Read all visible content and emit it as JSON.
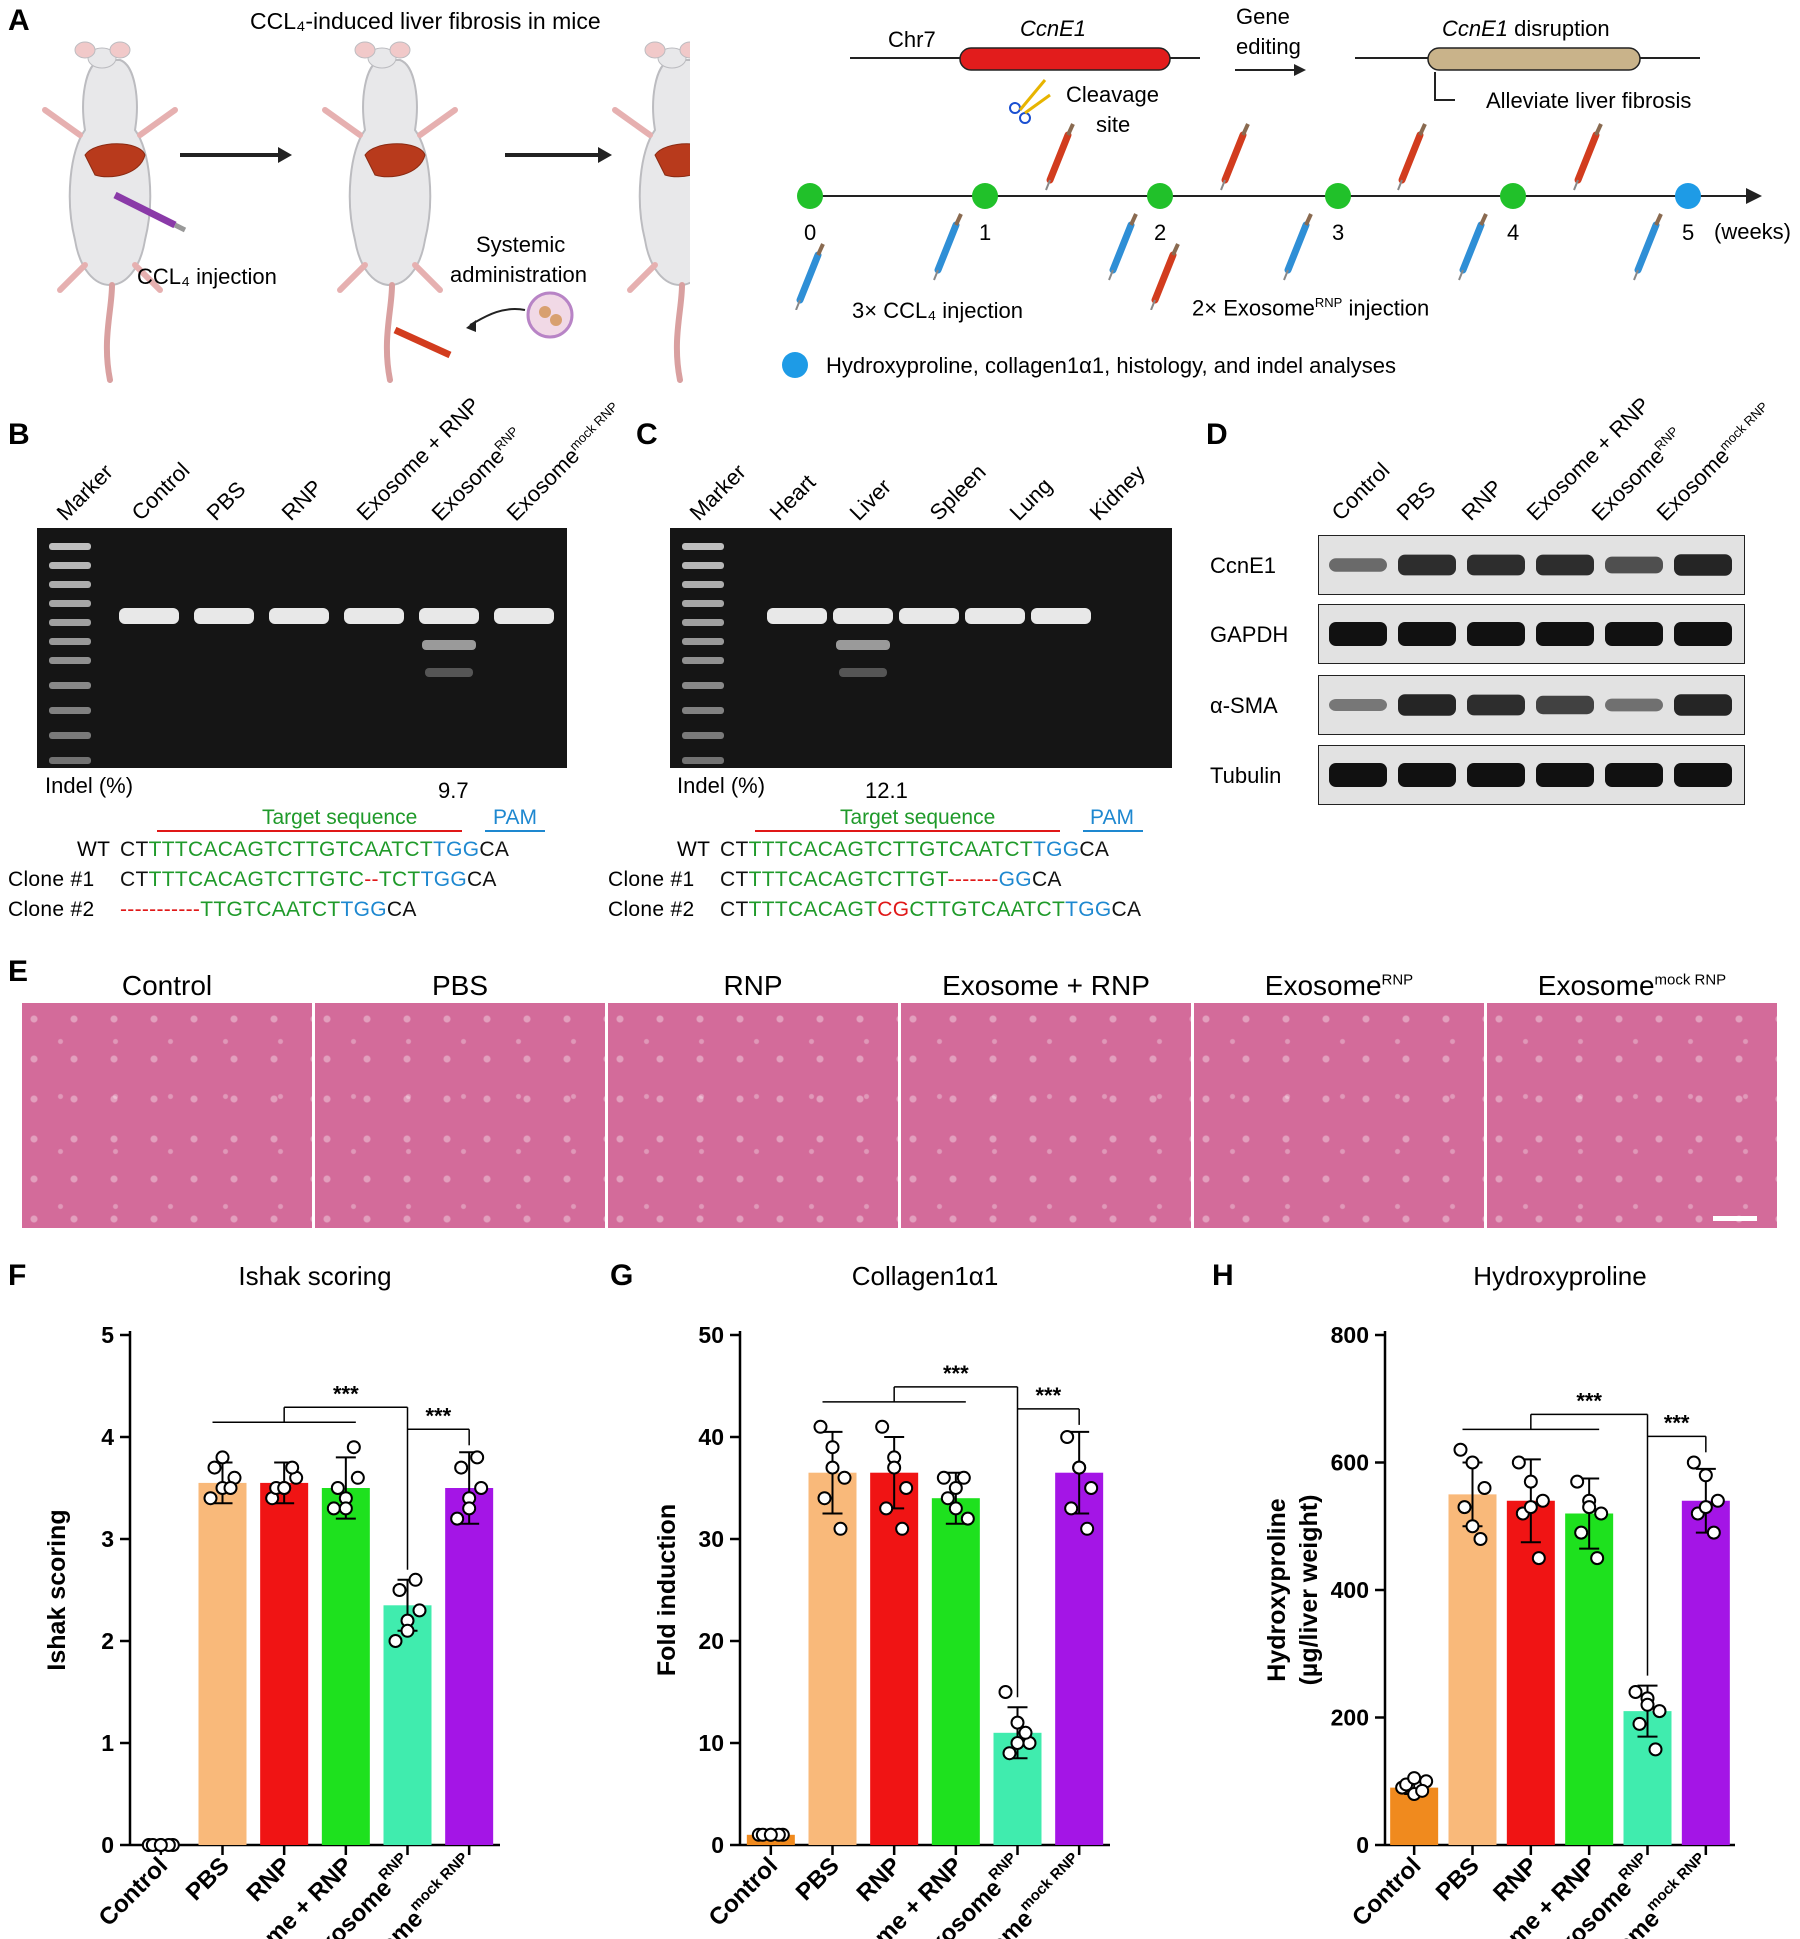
{
  "panelA": {
    "letter": "A",
    "title": "CCL₄-induced liver fibrosis in mice",
    "ccl4_injection": "CCL₄ injection",
    "systemic_1": "Systemic",
    "systemic_2": "administration",
    "chr": "Chr7",
    "gene": "CcnE1",
    "cleavage_1": "Cleavage",
    "cleavage_2": "site",
    "gene_editing_1": "Gene",
    "gene_editing_2": "editing",
    "disruption_gene": "CcnE1",
    "disruption_text": " disruption",
    "alleviate": "Alleviate liver fibrosis",
    "timeline_ticks": [
      "0",
      "1",
      "2",
      "3",
      "4",
      "5"
    ],
    "weeks": "(weeks)",
    "legend_ccl4": "3× CCL₄ injection",
    "legend_exo_pre": "2× Exosome",
    "legend_exo_sup": "RNP",
    "legend_exo_post": " injection",
    "legend_analysis": "Hydroxyproline, collagen1α1, histology, and indel analyses"
  },
  "panelB": {
    "letter": "B",
    "lanes": [
      "Marker",
      "Control",
      "PBS",
      "RNP",
      "Exosome + RNP",
      "ExosomeRNP",
      "Exosomemock RNP"
    ],
    "indel_label": "Indel (%)",
    "indel_value": "9.7",
    "target": "Target sequence",
    "pam": "PAM",
    "rows": [
      {
        "label": "WT",
        "segments": [
          [
            "CT",
            "k"
          ],
          [
            "TTTCACAGTCTTGTCAATCT",
            "g"
          ],
          [
            "TGG",
            "b"
          ],
          [
            "CA",
            "k"
          ]
        ]
      },
      {
        "label": "Clone #1",
        "segments": [
          [
            "CT",
            "k"
          ],
          [
            "TTTCACAGTCTTGTC",
            "g"
          ],
          [
            "--",
            "r"
          ],
          [
            "TCT",
            "g"
          ],
          [
            "TGG",
            "b"
          ],
          [
            "CA",
            "k"
          ]
        ]
      },
      {
        "label": "Clone #2",
        "segments": [
          [
            "-----------",
            "r"
          ],
          [
            "TTGTCAATCT",
            "g"
          ],
          [
            "TGG",
            "b"
          ],
          [
            "CA",
            "k"
          ]
        ]
      }
    ]
  },
  "panelC": {
    "letter": "C",
    "lanes": [
      "Marker",
      "Heart",
      "Liver",
      "Spleen",
      "Lung",
      "Kidney"
    ],
    "indel_label": "Indel (%)",
    "indel_value": "12.1",
    "target": "Target sequence",
    "pam": "PAM",
    "rows": [
      {
        "label": "WT",
        "segments": [
          [
            "CT",
            "k"
          ],
          [
            "TTTCACAGTCTTGTCAATCT",
            "g"
          ],
          [
            "TGG",
            "b"
          ],
          [
            "CA",
            "k"
          ]
        ]
      },
      {
        "label": "Clone #1",
        "segments": [
          [
            "CT",
            "k"
          ],
          [
            "TTTCACAGTCTTGT",
            "g"
          ],
          [
            "-------",
            "r"
          ],
          [
            "GG",
            "b"
          ],
          [
            "CA",
            "k"
          ]
        ]
      },
      {
        "label": "Clone #2",
        "segments": [
          [
            "CT",
            "k"
          ],
          [
            "TTTCACAGT",
            "g"
          ],
          [
            "CG",
            "r"
          ],
          [
            "CTTGTCAATCT",
            "g"
          ],
          [
            "TGG",
            "b"
          ],
          [
            "CA",
            "k"
          ]
        ]
      }
    ]
  },
  "panelD": {
    "letter": "D",
    "lanes": [
      "Control",
      "PBS",
      "RNP",
      "Exosome + RNP",
      "ExosomeRNP",
      "Exosomemock RNP"
    ],
    "blots": [
      {
        "name": "CcnE1",
        "intensity": [
          0.35,
          0.8,
          0.8,
          0.8,
          0.55,
          0.85
        ]
      },
      {
        "name": "GAPDH",
        "intensity": [
          1,
          1,
          1,
          1,
          1,
          1
        ]
      },
      {
        "name": "α-SMA",
        "intensity": [
          0.25,
          0.85,
          0.8,
          0.65,
          0.3,
          0.85
        ]
      },
      {
        "name": "Tubulin",
        "intensity": [
          1,
          1,
          1,
          1,
          1,
          1
        ]
      }
    ]
  },
  "panelE": {
    "letter": "E",
    "labels": [
      "Control",
      "PBS",
      "RNP",
      "Exosome + RNP",
      "Exosome",
      "Exosome"
    ],
    "sups": [
      "",
      "",
      "",
      "",
      "RNP",
      "mock RNP"
    ]
  },
  "categories": [
    "Control",
    "PBS",
    "RNP",
    "Exosome + RNP",
    "Exosome",
    "Exosome"
  ],
  "category_sups": [
    "",
    "",
    "",
    "",
    "RNP",
    "mock RNP"
  ],
  "colors": [
    "#f08a1e",
    "#f9b97a",
    "#f01414",
    "#1ee11e",
    "#40ecae",
    "#a415e6"
  ],
  "significance": "***",
  "chart_data": [
    {
      "letter": "F",
      "type": "bar",
      "title": "Ishak scoring",
      "ylabel": "Ishak scoring",
      "ylim": [
        0,
        5
      ],
      "yticks": [
        "0",
        "1",
        "2",
        "3",
        "4",
        "5"
      ],
      "values": [
        0,
        3.55,
        3.55,
        3.5,
        2.35,
        3.5
      ],
      "errors": [
        0,
        0.2,
        0.2,
        0.3,
        0.25,
        0.35
      ],
      "points": [
        [
          0,
          0,
          0,
          0,
          0,
          0
        ],
        [
          3.4,
          3.5,
          3.6,
          3.7,
          3.5,
          3.8
        ],
        [
          3.4,
          3.5,
          3.6,
          3.5,
          3.7,
          3.5
        ],
        [
          3.3,
          3.4,
          3.6,
          3.5,
          3.9,
          3.3
        ],
        [
          2.0,
          2.2,
          2.3,
          2.5,
          2.6,
          2.1
        ],
        [
          3.2,
          3.4,
          3.5,
          3.7,
          3.8,
          3.3
        ]
      ]
    },
    {
      "letter": "G",
      "type": "bar",
      "title": "Collagen1α1",
      "ylabel": "Fold induction",
      "ylim": [
        0,
        50
      ],
      "yticks": [
        "0",
        "10",
        "20",
        "30",
        "40",
        "50"
      ],
      "values": [
        1,
        36.5,
        36.5,
        34,
        11,
        36.5
      ],
      "errors": [
        0,
        4,
        3.5,
        2.5,
        2.5,
        4
      ],
      "points": [
        [
          1,
          1,
          1,
          1,
          1,
          1
        ],
        [
          41,
          39,
          36,
          34,
          31,
          37
        ],
        [
          41,
          38,
          35,
          33,
          31,
          37
        ],
        [
          36,
          33,
          32,
          34,
          36,
          35
        ],
        [
          15,
          12,
          10,
          9,
          11,
          10
        ],
        [
          40,
          37,
          35,
          33,
          31,
          37
        ]
      ]
    },
    {
      "letter": "H",
      "type": "bar",
      "title": "Hydroxyproline",
      "ylabel": "Hydroxyproline (µg/liver weight)",
      "ylabel_line1": "Hydroxyproline",
      "ylabel_line2": "(µg/liver weight)",
      "ylim": [
        0,
        800
      ],
      "yticks": [
        "0",
        "200",
        "400",
        "600",
        "800"
      ],
      "values": [
        90,
        550,
        540,
        520,
        210,
        540
      ],
      "errors": [
        10,
        50,
        65,
        55,
        40,
        50
      ],
      "points": [
        [
          90,
          80,
          100,
          95,
          85,
          105
        ],
        [
          620,
          600,
          560,
          530,
          480,
          500
        ],
        [
          600,
          570,
          540,
          520,
          450,
          530
        ],
        [
          570,
          540,
          520,
          490,
          450,
          530
        ],
        [
          240,
          230,
          210,
          190,
          150,
          220
        ],
        [
          600,
          580,
          540,
          520,
          490,
          530
        ]
      ]
    }
  ]
}
